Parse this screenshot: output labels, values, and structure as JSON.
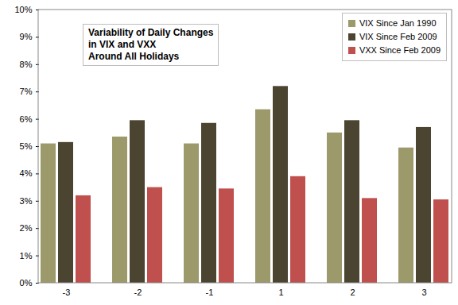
{
  "chart_data": {
    "type": "bar",
    "title": "Variability of Daily Changes\nin VIX and VXX\nAround All Holidays",
    "categories": [
      "-3",
      "-2",
      "-1",
      "1",
      "2",
      "3"
    ],
    "series": [
      {
        "name": "VIX Since Jan 1990",
        "color": "#9c9a6a",
        "values": [
          5.1,
          5.35,
          5.1,
          6.35,
          5.5,
          4.95
        ]
      },
      {
        "name": "VIX Since Feb 2009",
        "color": "#4b4430",
        "values": [
          5.15,
          5.95,
          5.85,
          7.2,
          5.95,
          5.7
        ]
      },
      {
        "name": "VXX Since Feb 2009",
        "color": "#c0504d",
        "values": [
          3.2,
          3.5,
          3.45,
          3.9,
          3.1,
          3.05
        ]
      }
    ],
    "ylim": [
      0,
      10
    ],
    "yticks": [
      {
        "value": 0,
        "label": "0%"
      },
      {
        "value": 1,
        "label": "1%"
      },
      {
        "value": 2,
        "label": "2%"
      },
      {
        "value": 3,
        "label": "3%"
      },
      {
        "value": 4,
        "label": "4%"
      },
      {
        "value": 5,
        "label": "5%"
      },
      {
        "value": 6,
        "label": "6%"
      },
      {
        "value": 7,
        "label": "7%"
      },
      {
        "value": 8,
        "label": "8%"
      },
      {
        "value": 9,
        "label": "9%"
      },
      {
        "value": 10,
        "label": "10%"
      }
    ],
    "grid": false,
    "legend": "top-right"
  }
}
